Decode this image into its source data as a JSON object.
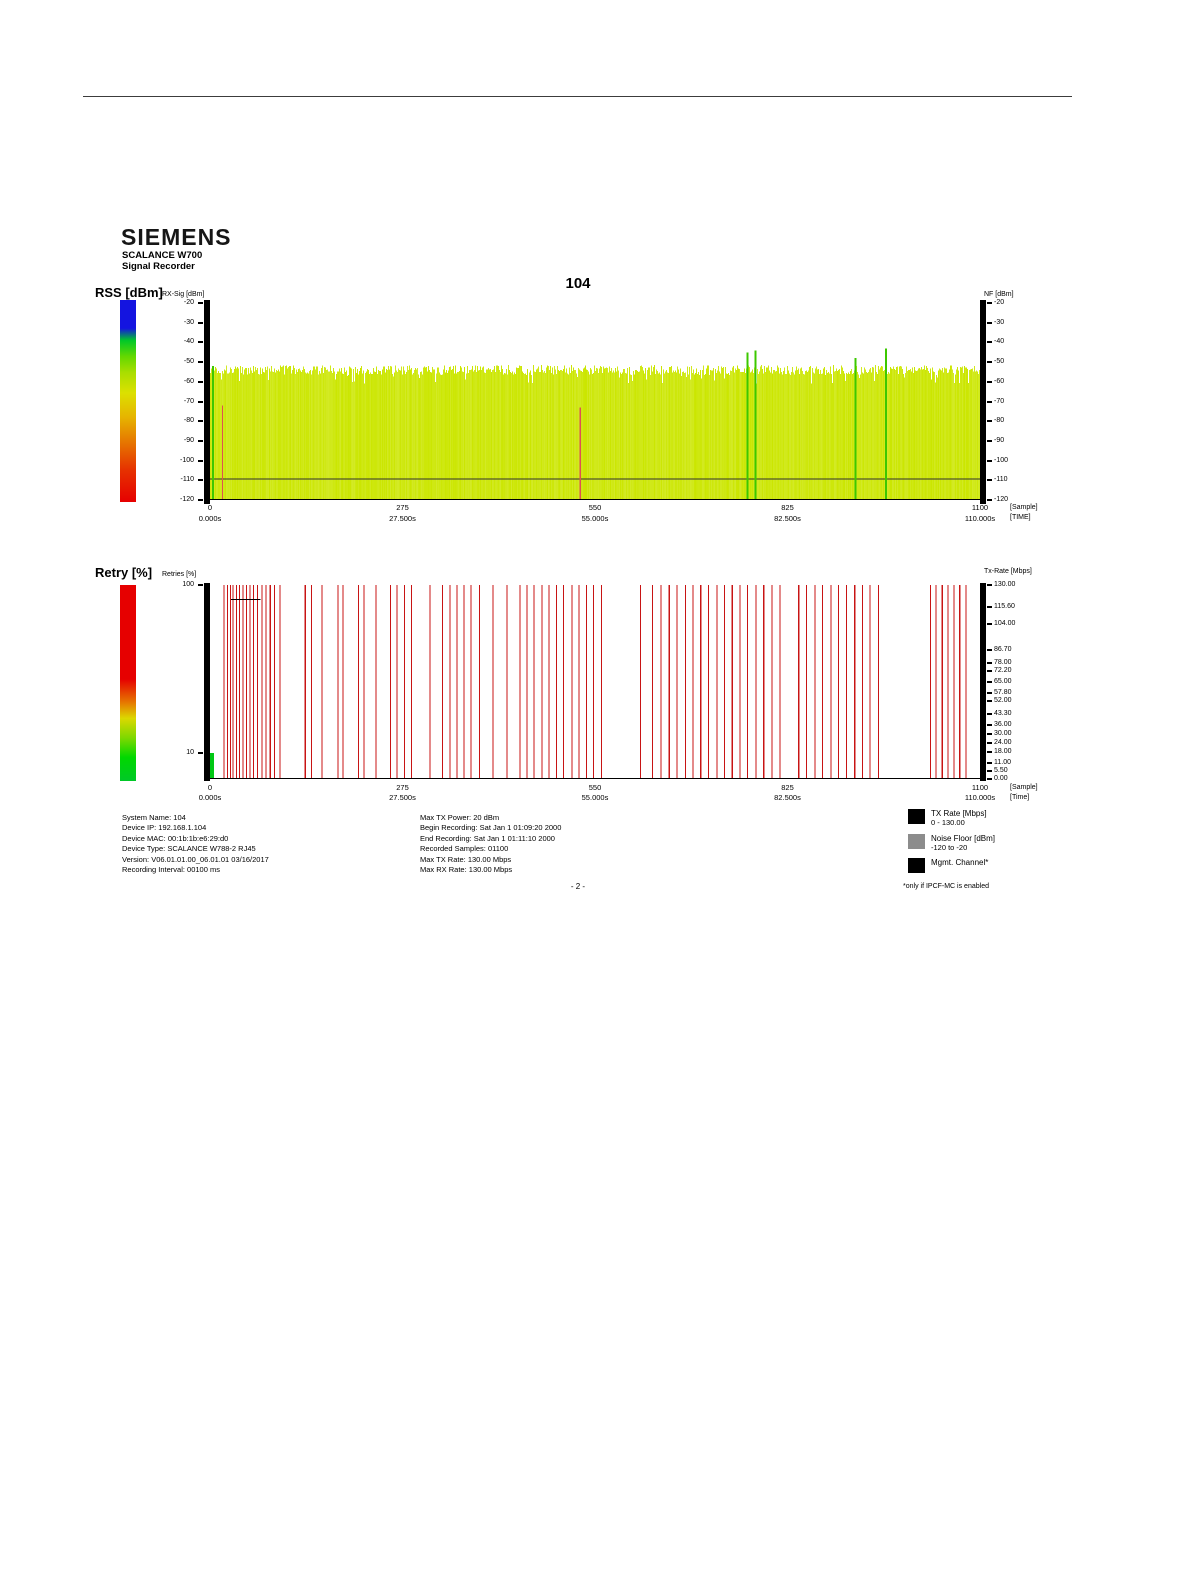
{
  "header": {
    "brand": "SIEMENS",
    "product": "SCALANCE W700",
    "subtitle": "Signal Recorder"
  },
  "title": "104",
  "rss_section": {
    "left_label": "RSS [dBm]",
    "x_unit_sample": "[Sample]",
    "x_unit_time": "[TIME]"
  },
  "retry_section": {
    "left_label": "Retry [%]",
    "x_unit_sample": "[Sample]",
    "x_unit_time": "[Time]"
  },
  "colorbars": {
    "rss_stops": [
      "#1414e0 0%",
      "#1414e0 14%",
      "#00c828 20%",
      "#64d800 28%",
      "#aade00 36%",
      "#dce000 46%",
      "#e6b400 58%",
      "#e67800 70%",
      "#e63200 84%",
      "#e60000 100%"
    ],
    "retry_stops": [
      "#e60000 0%",
      "#e60000 48%",
      "#e67800 60%",
      "#dcd800 68%",
      "#7ed800 78%",
      "#00d800 88%",
      "#00c828 100%"
    ]
  },
  "chart_data": [
    {
      "id": "rss-signal",
      "type": "area",
      "title": "104",
      "ylabel_left": "RX-Sig [dBm]",
      "ylabel_right": "NF [dBm]",
      "ylim": [
        -120,
        -20
      ],
      "y_ticks": [
        "-20",
        "-30",
        "-40",
        "-50",
        "-60",
        "-70",
        "-80",
        "-90",
        "-100",
        "-110",
        "-120"
      ],
      "xlim_samples": [
        0,
        1100
      ],
      "x_ticks_samples": [
        0,
        275,
        550,
        825,
        1100
      ],
      "x_ticks_time": [
        "0.000s",
        "27.500s",
        "55.000s",
        "82.500s",
        "110.000s"
      ],
      "signal": {
        "columns": 1100,
        "top_mean_dbm": -54,
        "top_jitter_dbm": 2.5,
        "deep_fade_prob": 0.05,
        "deep_fade_dbm": -59,
        "base_dbm": -120,
        "fill_color": "#cbe600",
        "seed": 1337
      },
      "green_spikes": [
        {
          "sample": 4,
          "top_dbm": -52
        },
        {
          "sample": 768,
          "top_dbm": -45
        },
        {
          "sample": 779,
          "top_dbm": -44
        },
        {
          "sample": 922,
          "top_dbm": -48
        },
        {
          "sample": 966,
          "top_dbm": -43
        }
      ],
      "red_lines": [
        {
          "sample": 18,
          "top_dbm": -72
        },
        {
          "sample": 529,
          "top_dbm": -73
        }
      ],
      "noise_floor_dbm": -109,
      "noise_floor_color": "#303030",
      "spike_color": "#3cc800",
      "red_line_color": "#e05050"
    },
    {
      "id": "retry-rate",
      "type": "event-lines",
      "ylabel_left": "Retries [%]",
      "ylabel_right": "Tx-Rate [Mbps]",
      "y_scale": "log",
      "y_ticks": [
        "100",
        "10"
      ],
      "y_top": 100,
      "y_bottom": 7,
      "right_ticks": [
        "130.00",
        "115.60",
        "104.00",
        "86.70",
        "78.00",
        "72.20",
        "65.00",
        "57.80",
        "52.00",
        "43.30",
        "36.00",
        "30.00",
        "24.00",
        "18.00",
        "11.00",
        "5.50",
        "0.00"
      ],
      "right_axis_max": 130,
      "xlim_samples": [
        0,
        1100
      ],
      "x_ticks_samples": [
        0,
        275,
        550,
        825,
        1100
      ],
      "x_ticks_time": [
        "0.000s",
        "27.500s",
        "55.000s",
        "82.500s",
        "110.000s"
      ],
      "retry_color": "#c81414",
      "retry_event_samples": [
        20,
        25,
        29,
        33,
        38,
        42,
        47,
        52,
        57,
        62,
        68,
        74,
        80,
        86,
        92,
        100,
        136,
        145,
        160,
        183,
        190,
        212,
        220,
        237,
        258,
        267,
        278,
        288,
        314,
        332,
        343,
        353,
        363,
        373,
        385,
        404,
        424,
        443,
        453,
        463,
        474,
        484,
        495,
        505,
        517,
        527,
        538,
        548,
        559,
        615,
        632,
        644,
        656,
        667,
        679,
        690,
        701,
        712,
        724,
        735,
        746,
        757,
        768,
        780,
        791,
        803,
        814,
        841,
        852,
        864,
        875,
        887,
        898,
        909,
        921,
        932,
        943,
        955,
        1029,
        1037,
        1046,
        1054,
        1063,
        1071,
        1080
      ],
      "plateau_segment": {
        "from_sample": 30,
        "to_sample": 72,
        "value_pct": 82,
        "color": "#000000"
      },
      "start_mark": {
        "from_sample": 0,
        "to_sample": 6,
        "color": "#00c814"
      }
    }
  ],
  "footer": {
    "left": [
      {
        "label": "System Name:",
        "value": "104"
      },
      {
        "label": "Device IP:",
        "value": "192.168.1.104"
      },
      {
        "label": "Device MAC:",
        "value": "00:1b:1b:e6:29:d0"
      },
      {
        "label": "Device Type:",
        "value": "SCALANCE W788-2 RJ45"
      },
      {
        "label": "Version:",
        "value": "V06.01.01.00_06.01.01 03/16/2017"
      },
      {
        "label": "Recording Interval:",
        "value": "00100 ms"
      }
    ],
    "middle": [
      {
        "label": "Max TX Power:",
        "value": "20 dBm"
      },
      {
        "label": "Begin Recording:",
        "value": "Sat Jan  1 01:09:20 2000"
      },
      {
        "label": "End Recording:",
        "value": "Sat Jan  1 01:11:10 2000"
      },
      {
        "label": "Recorded Samples:",
        "value": "01100"
      },
      {
        "label": "Max TX Rate:",
        "value": "130.00 Mbps"
      },
      {
        "label": "Max RX Rate:",
        "value": "130.00 Mbps"
      }
    ],
    "page_number": "- 2 -"
  },
  "legend": {
    "items": [
      {
        "label": "TX Rate [Mbps]",
        "sub": "0 - 130.00",
        "color": "#000000"
      },
      {
        "label": "Noise Floor [dBm]",
        "sub": "-120 to -20",
        "color": "#8c8c8c"
      },
      {
        "label": "Mgmt. Channel*",
        "sub": "",
        "color": "#000000"
      }
    ],
    "note": "*only if IPCF-MC is enabled"
  }
}
